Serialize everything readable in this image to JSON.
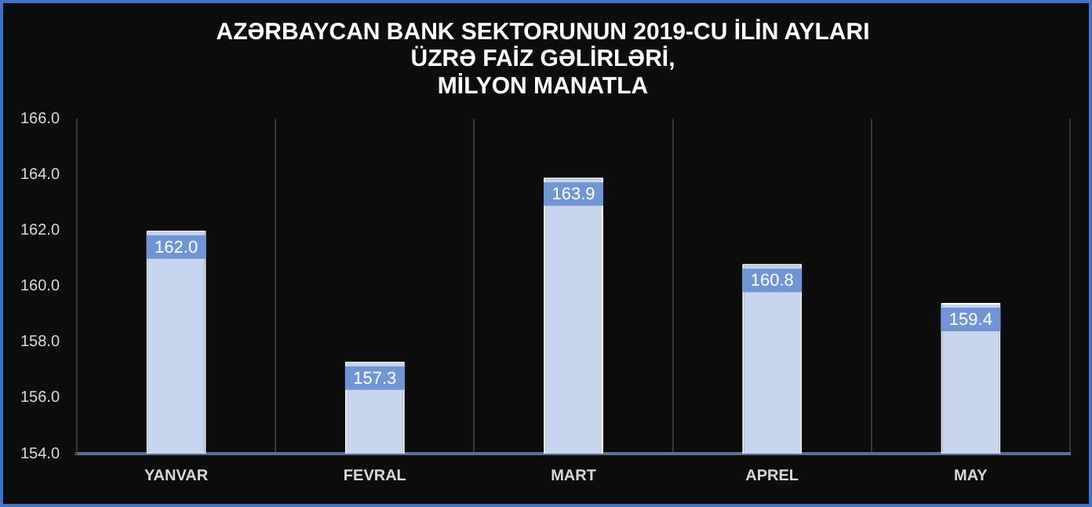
{
  "chart_data": {
    "type": "bar",
    "title": "AZƏRBAYCAN BANK SEKTORUNUN 2019-CU İLİN AYLARI\nÜZRƏ FAİZ GƏLİRLƏRİ,\nMİLYON MANATLA",
    "categories": [
      "YANVAR",
      "FEVRAL",
      "MART",
      "APREL",
      "MAY"
    ],
    "values": [
      162.0,
      157.3,
      163.9,
      160.8,
      159.4
    ],
    "color": "#c8d5ee",
    "value_labels": [
      "162.0",
      "157.3",
      "163.9",
      "160.8",
      "159.4"
    ],
    "ylim": [
      154,
      166
    ],
    "yticks": [
      {
        "value": 154,
        "label": "154.0"
      },
      {
        "value": 156,
        "label": "156.0"
      },
      {
        "value": 158,
        "label": "158.0"
      },
      {
        "value": 160,
        "label": "160.0"
      },
      {
        "value": 162,
        "label": "162.0"
      },
      {
        "value": 164,
        "label": "164.0"
      },
      {
        "value": 166,
        "label": "166.0"
      }
    ],
    "grid": "x"
  }
}
